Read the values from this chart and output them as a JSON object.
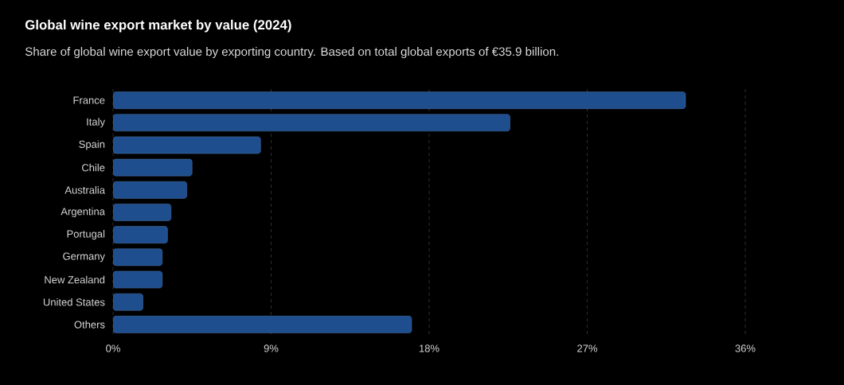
{
  "chart_data": {
    "type": "bar",
    "orientation": "horizontal",
    "title": "Global wine export market by value (2024)",
    "subtitle": "Share of global wine export value by exporting country. Based on total global exports of €35.9 billion.",
    "categories": [
      "France",
      "Italy",
      "Spain",
      "Chile",
      "Australia",
      "Argentina",
      "Portugal",
      "Germany",
      "New Zealand",
      "United States",
      "Others"
    ],
    "values": [
      32.6,
      22.6,
      8.4,
      4.5,
      4.2,
      3.3,
      3.1,
      2.8,
      2.8,
      1.7,
      17.0
    ],
    "color": "#1f4e8f",
    "xlim": [
      0,
      36
    ],
    "xticks": [
      {
        "value": 0,
        "label": "0%"
      },
      {
        "value": 9,
        "label": "9%"
      },
      {
        "value": 18,
        "label": "18%"
      },
      {
        "value": 27,
        "label": "27%"
      },
      {
        "value": 36,
        "label": "36%"
      }
    ],
    "grid": "x"
  }
}
